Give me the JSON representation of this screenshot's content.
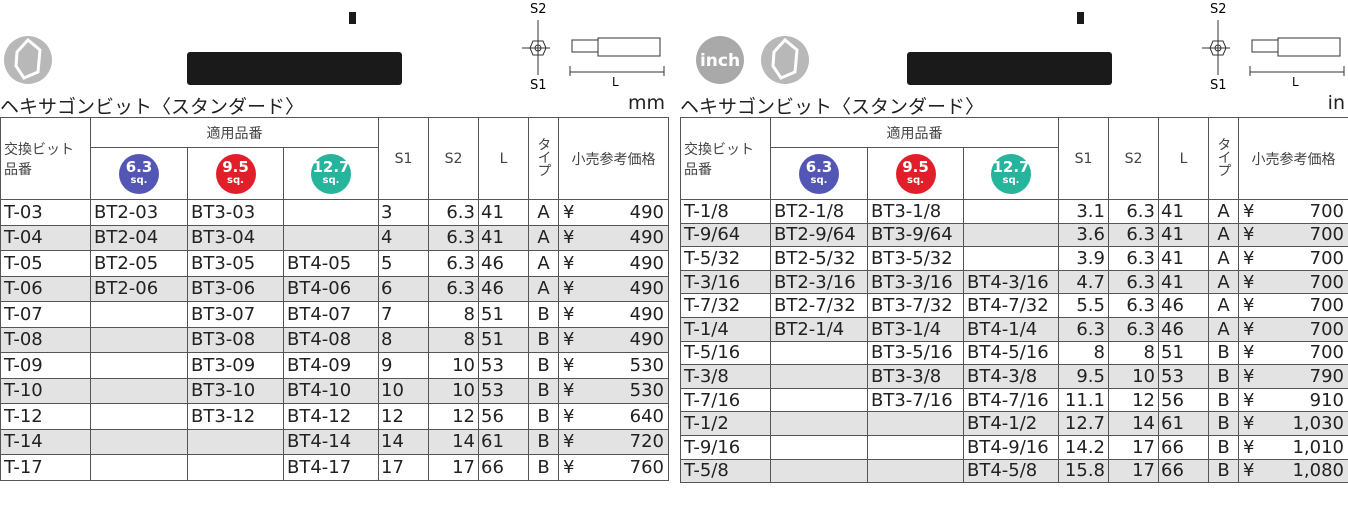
{
  "left": {
    "title": "ヘキサゴンビット〈スタンダード〉",
    "unit": "mm",
    "diagram_labels": {
      "s2": "S2",
      "s1": "S1",
      "l": "L"
    },
    "header": {
      "part_number": [
        "交換ビット",
        "品番"
      ],
      "applicable": "適用品番",
      "sockets": [
        {
          "size": "6.3",
          "unit": "sq."
        },
        {
          "size": "9.5",
          "unit": "sq."
        },
        {
          "size": "12.7",
          "unit": "sq."
        }
      ],
      "s1": "S1",
      "s2": "S2",
      "l": "L",
      "type": "タイプ",
      "price": "小売参考価格"
    },
    "currency": "¥",
    "rows": [
      [
        "T-03",
        "BT2-03",
        "BT3-03",
        null,
        "3",
        "6.3",
        "41",
        "A",
        "490"
      ],
      [
        "T-04",
        "BT2-04",
        "BT3-04",
        null,
        "4",
        "6.3",
        "41",
        "A",
        "490"
      ],
      [
        "T-05",
        "BT2-05",
        "BT3-05",
        "BT4-05",
        "5",
        "6.3",
        "46",
        "A",
        "490"
      ],
      [
        "T-06",
        "BT2-06",
        "BT3-06",
        "BT4-06",
        "6",
        "6.3",
        "46",
        "A",
        "490"
      ],
      [
        "T-07",
        null,
        "BT3-07",
        "BT4-07",
        "7",
        "8",
        "51",
        "B",
        "490"
      ],
      [
        "T-08",
        null,
        "BT3-08",
        "BT4-08",
        "8",
        "8",
        "51",
        "B",
        "490"
      ],
      [
        "T-09",
        null,
        "BT3-09",
        "BT4-09",
        "9",
        "10",
        "53",
        "B",
        "530"
      ],
      [
        "T-10",
        null,
        "BT3-10",
        "BT4-10",
        "10",
        "10",
        "53",
        "B",
        "530"
      ],
      [
        "T-12",
        null,
        "BT3-12",
        "BT4-12",
        "12",
        "12",
        "56",
        "B",
        "640"
      ],
      [
        "T-14",
        null,
        null,
        "BT4-14",
        "14",
        "14",
        "61",
        "B",
        "720"
      ],
      [
        "T-17",
        null,
        null,
        "BT4-17",
        "17",
        "17",
        "66",
        "B",
        "760"
      ]
    ]
  },
  "right": {
    "badge": "inch",
    "title": "ヘキサゴンビット〈スタンダード〉",
    "unit": "in",
    "diagram_labels": {
      "s2": "S2",
      "s1": "S1",
      "l": "L"
    },
    "header": {
      "part_number": [
        "交換ビット",
        "品番"
      ],
      "applicable": "適用品番",
      "sockets": [
        {
          "size": "6.3",
          "unit": "sq."
        },
        {
          "size": "9.5",
          "unit": "sq."
        },
        {
          "size": "12.7",
          "unit": "sq."
        }
      ],
      "s1": "S1",
      "s2": "S2",
      "l": "L",
      "type": "タイプ",
      "price": "小売参考価格"
    },
    "currency": "¥",
    "rows": [
      [
        "T-1/8",
        "BT2-1/8",
        "BT3-1/8",
        null,
        "3.1",
        "6.3",
        "41",
        "A",
        "700"
      ],
      [
        "T-9/64",
        "BT2-9/64",
        "BT3-9/64",
        null,
        "3.6",
        "6.3",
        "41",
        "A",
        "700"
      ],
      [
        "T-5/32",
        "BT2-5/32",
        "BT3-5/32",
        null,
        "3.9",
        "6.3",
        "41",
        "A",
        "700"
      ],
      [
        "T-3/16",
        "BT2-3/16",
        "BT3-3/16",
        "BT4-3/16",
        "4.7",
        "6.3",
        "41",
        "A",
        "700"
      ],
      [
        "T-7/32",
        "BT2-7/32",
        "BT3-7/32",
        "BT4-7/32",
        "5.5",
        "6.3",
        "46",
        "A",
        "700"
      ],
      [
        "T-1/4",
        "BT2-1/4",
        "BT3-1/4",
        "BT4-1/4",
        "6.3",
        "6.3",
        "46",
        "A",
        "700"
      ],
      [
        "T-5/16",
        null,
        "BT3-5/16",
        "BT4-5/16",
        "8",
        "8",
        "51",
        "B",
        "700"
      ],
      [
        "T-3/8",
        null,
        "BT3-3/8",
        "BT4-3/8",
        "9.5",
        "10",
        "53",
        "B",
        "790"
      ],
      [
        "T-7/16",
        null,
        "BT3-7/16",
        "BT4-7/16",
        "11.1",
        "12",
        "56",
        "B",
        "910"
      ],
      [
        "T-1/2",
        null,
        null,
        "BT4-1/2",
        "12.7",
        "14",
        "61",
        "B",
        "1,030"
      ],
      [
        "T-9/16",
        null,
        null,
        "BT4-9/16",
        "14.2",
        "17",
        "66",
        "B",
        "1,010"
      ],
      [
        "T-5/8",
        null,
        null,
        "BT4-5/8",
        "15.8",
        "17",
        "66",
        "B",
        "1,080"
      ]
    ]
  }
}
